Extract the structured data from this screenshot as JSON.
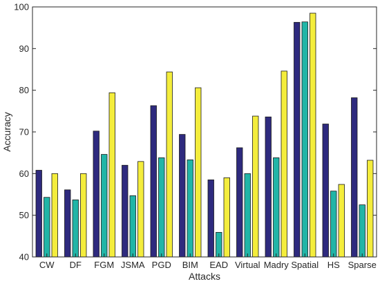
{
  "chart_data": {
    "type": "bar",
    "title": "",
    "xlabel": "Attacks",
    "ylabel": "Accuracy",
    "ylim": [
      40,
      100
    ],
    "yticks": [
      40,
      50,
      60,
      70,
      80,
      90,
      100
    ],
    "grid": false,
    "legend": "none",
    "categories": [
      "CW",
      "DF",
      "FGM",
      "JSMA",
      "PGD",
      "BIM",
      "EAD",
      "Virtual",
      "Madry",
      "Spatial",
      "HS",
      "Sparse"
    ],
    "series": [
      {
        "color": "#2e2a7e",
        "values": [
          60.8,
          56.1,
          70.2,
          62.0,
          76.3,
          69.4,
          58.5,
          66.2,
          73.6,
          96.3,
          71.9,
          78.2
        ]
      },
      {
        "color": "#21b5a7",
        "values": [
          54.3,
          53.7,
          64.6,
          54.7,
          63.8,
          63.3,
          45.9,
          60.0,
          63.8,
          96.4,
          55.8,
          52.5
        ]
      },
      {
        "color": "#f4ed3c",
        "values": [
          60.0,
          60.0,
          79.4,
          62.9,
          84.4,
          80.6,
          59.0,
          73.8,
          84.6,
          98.5,
          57.4,
          63.2
        ]
      }
    ]
  }
}
